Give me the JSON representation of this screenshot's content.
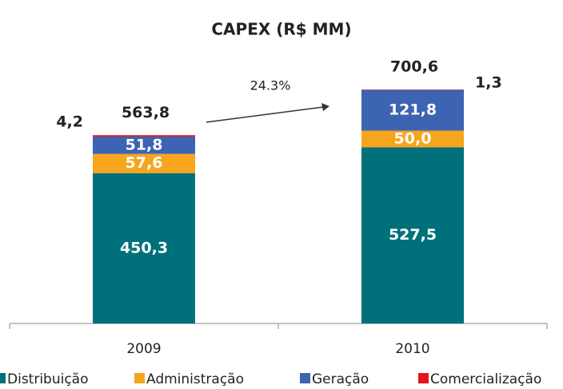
{
  "chart_data": {
    "type": "stacked_bar",
    "title": "CAPEX (R$ MM)",
    "categories": [
      "2009",
      "2010"
    ],
    "series": [
      {
        "name": "Distribuição",
        "color": "#00717a",
        "values": [
          450.3,
          527.5
        ],
        "value_labels": [
          "450,3",
          "527,5"
        ]
      },
      {
        "name": "Administração",
        "color": "#f6a51c",
        "values": [
          57.6,
          50.0
        ],
        "value_labels": [
          "57,6",
          "50,0"
        ]
      },
      {
        "name": "Geração",
        "color": "#3d63b3",
        "values": [
          51.8,
          121.8
        ],
        "value_labels": [
          "51,8",
          "121,8"
        ]
      },
      {
        "name": "Comercialização",
        "color": "#e3151d",
        "values": [
          4.2,
          1.3
        ],
        "value_labels": [
          "4,2",
          "1,3"
        ]
      }
    ],
    "totals": {
      "values": [
        563.8,
        700.6
      ],
      "value_labels": [
        "563,8",
        "700,6"
      ]
    },
    "annotations": [
      {
        "text": "24.3%"
      }
    ],
    "ylim": [
      0,
      800
    ],
    "legend": "bottom"
  }
}
